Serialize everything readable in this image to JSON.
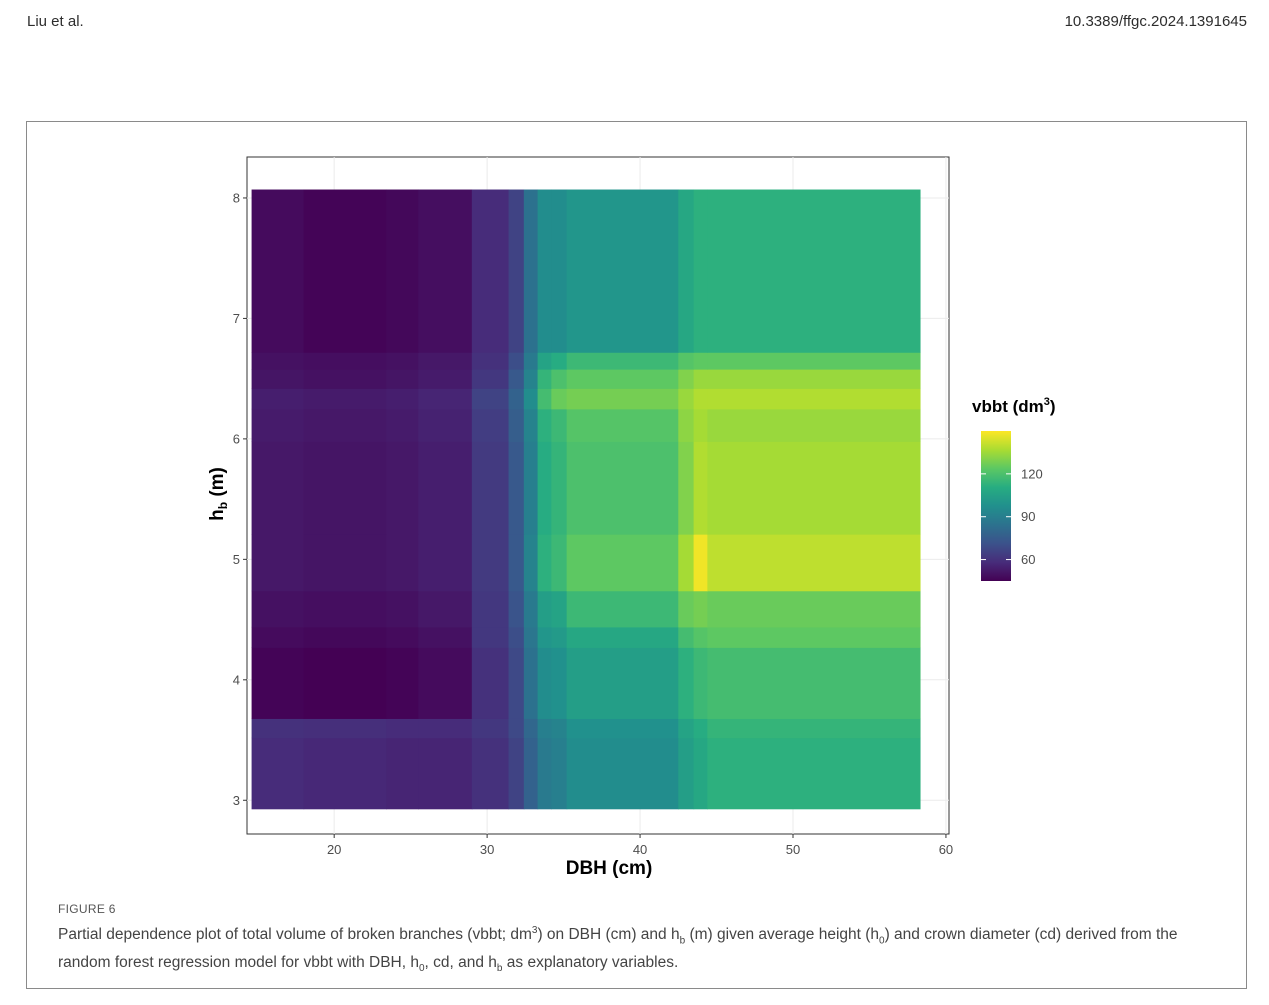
{
  "header": {
    "authors": "Liu et al.",
    "doi": "10.3389/ffgc.2024.1391645"
  },
  "figure": {
    "label": "FIGURE 6",
    "caption_parts": [
      "Partial dependence plot of total volume of broken branches (vbbt; dm",
      "3",
      ") on DBH (cm) and h",
      "b",
      " (m) given average height (h",
      "0",
      ") and crown diameter (cd) derived from the random forest regression model for vbbt with DBH, h",
      "0",
      ", cd, and h",
      "b",
      " as explanatory variables."
    ]
  },
  "chart_data": {
    "type": "heatmap",
    "title": "",
    "xlabel": "DBH (cm)",
    "ylabel_main": "h",
    "ylabel_sub": "b",
    "ylabel_unit": " (m)",
    "xlim": [
      14.3,
      60.2
    ],
    "ylim": [
      2.72,
      8.34
    ],
    "x_ticks": [
      20,
      30,
      40,
      50,
      60
    ],
    "y_ticks": [
      3,
      4,
      5,
      6,
      7,
      8
    ],
    "grid": true,
    "legend": {
      "title_main": "vbbt (dm",
      "title_sup": "3",
      "title_end": ")",
      "position": "right",
      "min": 45,
      "max": 150,
      "ticks": [
        60,
        90,
        120
      ]
    },
    "colorscale": [
      "#440154",
      "#472c7a",
      "#3b528b",
      "#2c728e",
      "#21908d",
      "#27ad81",
      "#5cc863",
      "#aadc32",
      "#fde725"
    ],
    "x_edges": [
      14.6,
      18.0,
      23.4,
      25.5,
      29.0,
      31.4,
      32.4,
      33.3,
      34.2,
      35.2,
      42.5,
      43.5,
      44.4,
      58.3
    ],
    "y_edges": [
      2.93,
      3.52,
      3.68,
      4.27,
      4.44,
      4.74,
      5.21,
      5.98,
      6.25,
      6.42,
      6.58,
      6.72,
      8.07
    ],
    "z": [
      [
        58,
        57,
        56,
        56,
        60,
        66,
        78,
        88,
        90,
        96,
        104,
        108,
        112
      ],
      [
        60,
        59,
        58,
        58,
        62,
        68,
        80,
        90,
        92,
        98,
        106,
        110,
        114
      ],
      [
        46,
        45,
        46,
        48,
        60,
        68,
        84,
        96,
        98,
        104,
        112,
        116,
        118
      ],
      [
        48,
        47,
        48,
        50,
        62,
        70,
        86,
        100,
        102,
        108,
        118,
        122,
        124
      ],
      [
        50,
        49,
        50,
        52,
        62,
        72,
        88,
        104,
        106,
        116,
        126,
        128,
        126
      ],
      [
        52,
        51,
        52,
        54,
        63,
        74,
        92,
        112,
        116,
        124,
        136,
        148,
        140
      ],
      [
        52,
        51,
        52,
        54,
        63,
        74,
        90,
        110,
        114,
        120,
        130,
        138,
        136
      ],
      [
        53,
        52,
        53,
        55,
        64,
        76,
        92,
        112,
        116,
        122,
        132,
        136,
        134
      ],
      [
        54,
        53,
        54,
        56,
        66,
        78,
        96,
        118,
        126,
        128,
        134,
        138,
        138
      ],
      [
        51,
        50,
        51,
        53,
        62,
        74,
        92,
        114,
        120,
        124,
        130,
        134,
        134
      ],
      [
        50,
        49,
        50,
        52,
        60,
        70,
        88,
        106,
        110,
        116,
        122,
        124,
        124
      ],
      [
        48,
        46,
        47,
        49,
        58,
        66,
        84,
        96,
        96,
        100,
        108,
        112,
        112
      ]
    ]
  }
}
